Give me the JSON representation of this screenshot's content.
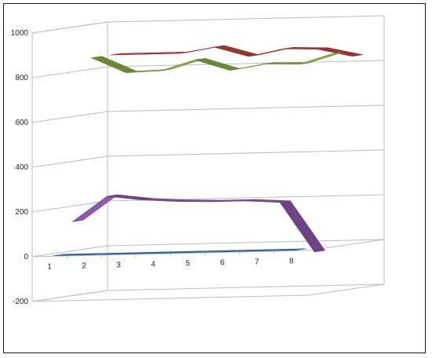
{
  "chart_data": {
    "type": "line",
    "style": "3d-ribbon",
    "x": [
      1,
      2,
      3,
      4,
      5,
      6,
      7,
      8
    ],
    "y_ticks": [
      1000,
      800,
      600,
      400,
      200,
      0,
      -200
    ],
    "ylim": [
      -200,
      1000
    ],
    "grid": true,
    "legend": "none",
    "series": [
      {
        "color": "#3a6ea8",
        "values": [
          0,
          0,
          0,
          0,
          0,
          0,
          0,
          0
        ]
      },
      {
        "color": "#7a4a94",
        "values": [
          140,
          250,
          230,
          220,
          215,
          215,
          205,
          -20
        ]
      },
      {
        "color": "#77973d",
        "values": [
          860,
          790,
          795,
          840,
          790,
          815,
          810,
          855
        ]
      },
      {
        "color": "#a73a35",
        "values": [
          860,
          860,
          860,
          885,
          840,
          870,
          865,
          830
        ]
      }
    ]
  }
}
